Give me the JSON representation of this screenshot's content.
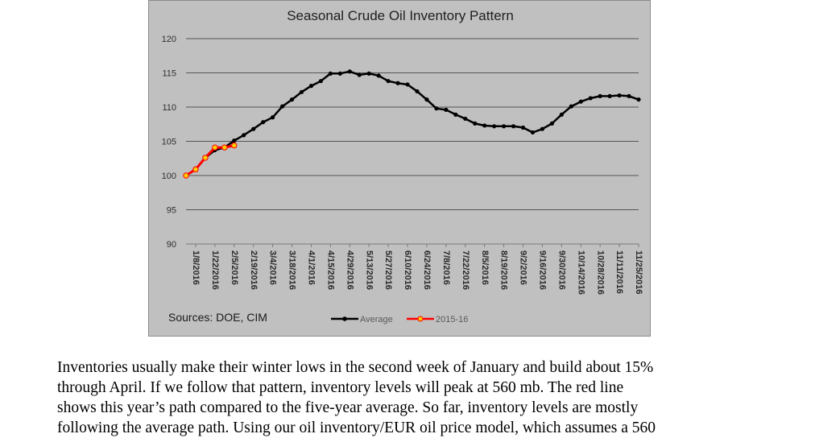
{
  "chart_data": {
    "type": "line",
    "title": "Seasonal Crude Oil Inventory Pattern",
    "xlabel": "",
    "ylabel": "",
    "ylim": [
      90,
      120
    ],
    "yticks": [
      "120",
      "115",
      "110",
      "105",
      "100",
      "95",
      "90"
    ],
    "x_tick_labels": [
      "1/8/2016",
      "1/22/2016",
      "2/5/2016",
      "2/19/2016",
      "3/4/2016",
      "3/18/2016",
      "4/1/2016",
      "4/15/2016",
      "4/29/2016",
      "5/13/2016",
      "5/27/2016",
      "6/10/2016",
      "6/24/2016",
      "7/8/2016",
      "7/22/2016",
      "8/5/2016",
      "8/19/2016",
      "9/2/2016",
      "9/16/2016",
      "9/30/2016",
      "10/14/2016",
      "10/28/2016",
      "11/11/2016",
      "11/25/2016"
    ],
    "grid": true,
    "legend_position": "bottom",
    "series": [
      {
        "name": "Average",
        "color": "#000000",
        "values": [
          100.0,
          100.9,
          102.6,
          103.7,
          104.1,
          105.1,
          105.9,
          106.8,
          107.8,
          108.5,
          110.1,
          111.1,
          112.2,
          113.1,
          113.8,
          114.9,
          114.9,
          115.2,
          114.7,
          114.9,
          114.6,
          113.8,
          113.5,
          113.3,
          112.3,
          111.1,
          109.8,
          109.6,
          108.9,
          108.3,
          107.6,
          107.3,
          107.2,
          107.2,
          107.2,
          107.0,
          106.3,
          106.8,
          107.6,
          108.9,
          110.1,
          110.8,
          111.3,
          111.6,
          111.6,
          111.7,
          111.6,
          111.1
        ]
      },
      {
        "name": "2015-16",
        "color": "#ff0000",
        "marker_color": "#ffcc00",
        "values": [
          100.0,
          100.9,
          102.6,
          104.1,
          104.1,
          104.4
        ]
      }
    ]
  },
  "sources": "Sources:  DOE, CIM",
  "paragraph_lines": [
    "Inventories usually make their winter lows in the second week of January and build about 15%",
    "through April.  If we follow that pattern, inventory levels will peak at 560 mb.  The red line",
    "shows this year’s path compared to the five-year average.  So far, inventory levels are mostly",
    "following the average path.  Using our oil inventory/EUR oil price model, which assumes a 560"
  ]
}
